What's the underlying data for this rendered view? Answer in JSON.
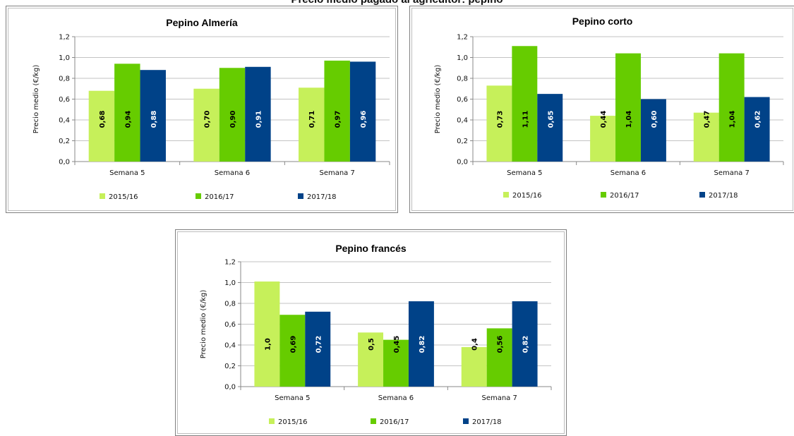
{
  "page": {
    "title": "Precio medio pagado al agricultor: pepino"
  },
  "colors": {
    "2015/16": "#c6f05a",
    "2016/17": "#66cc00",
    "2017/18": "#004288",
    "axis": "#888888",
    "grid": "#888888"
  },
  "legend": [
    "2015/16",
    "2016/17",
    "2017/18"
  ],
  "chart_data": [
    {
      "type": "bar",
      "title": "Pepino Almería",
      "ylabel": "Precio medio (€/kg)",
      "xlabel": "",
      "ylim": [
        0,
        1.2
      ],
      "yticks": [
        "0,0",
        "0,2",
        "0,4",
        "0,6",
        "0,8",
        "1,0",
        "1,2"
      ],
      "grid": true,
      "legend_position": "bottom",
      "categories": [
        "Semana 5",
        "Semana 6",
        "Semana 7"
      ],
      "series": [
        {
          "name": "2015/16",
          "values": [
            0.68,
            0.7,
            0.71
          ],
          "labels": [
            "0,68",
            "0,70",
            "0,71"
          ]
        },
        {
          "name": "2016/17",
          "values": [
            0.94,
            0.9,
            0.97
          ],
          "labels": [
            "0,94",
            "0,90",
            "0,97"
          ]
        },
        {
          "name": "2017/18",
          "values": [
            0.88,
            0.91,
            0.96
          ],
          "labels": [
            "0,88",
            "0,91",
            "0,96"
          ]
        }
      ]
    },
    {
      "type": "bar",
      "title": "Pepino corto",
      "ylabel": "Precio medio (€/kg)",
      "xlabel": "",
      "ylim": [
        0,
        1.2
      ],
      "yticks": [
        "0,0",
        "0,2",
        "0,4",
        "0,6",
        "0,8",
        "1,0",
        "1,2"
      ],
      "grid": true,
      "legend_position": "bottom",
      "categories": [
        "Semana 5",
        "Semana 6",
        "Semana 7"
      ],
      "series": [
        {
          "name": "2015/16",
          "values": [
            0.73,
            0.44,
            0.47
          ],
          "labels": [
            "0,73",
            "0,44",
            "0,47"
          ]
        },
        {
          "name": "2016/17",
          "values": [
            1.11,
            1.04,
            1.04
          ],
          "labels": [
            "1,11",
            "1,04",
            "1,04"
          ]
        },
        {
          "name": "2017/18",
          "values": [
            0.65,
            0.6,
            0.62
          ],
          "labels": [
            "0,65",
            "0,60",
            "0,62"
          ]
        }
      ]
    },
    {
      "type": "bar",
      "title": "Pepino francés",
      "ylabel": "Precio medio (€/kg)",
      "xlabel": "",
      "ylim": [
        0,
        1.2
      ],
      "yticks": [
        "0,0",
        "0,2",
        "0,4",
        "0,6",
        "0,8",
        "1,0",
        "1,2"
      ],
      "grid": true,
      "legend_position": "bottom",
      "categories": [
        "Semana 5",
        "Semana 6",
        "Semana 7"
      ],
      "series": [
        {
          "name": "2015/16",
          "values": [
            1.01,
            0.52,
            0.38
          ],
          "labels": [
            "1,0",
            "0,5",
            "0,4"
          ]
        },
        {
          "name": "2016/17",
          "values": [
            0.69,
            0.45,
            0.56
          ],
          "labels": [
            "0,69",
            "0,45",
            "0,56"
          ]
        },
        {
          "name": "2017/18",
          "values": [
            0.72,
            0.82,
            0.82
          ],
          "labels": [
            "0,72",
            "0,82",
            "0,82"
          ]
        }
      ]
    }
  ]
}
